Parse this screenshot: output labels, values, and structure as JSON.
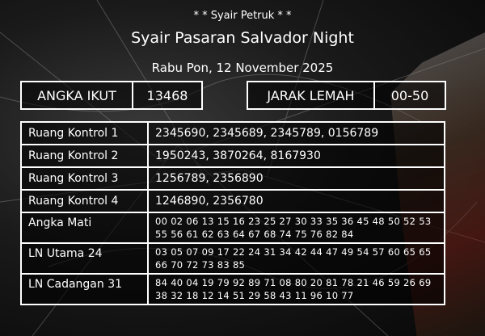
{
  "header": {
    "subtitle": "* * Syair Petruk * *",
    "title": "Syair Pasaran Salvador Night",
    "date": "Rabu Pon, 12 November 2025"
  },
  "angka_ikut": {
    "label": "ANGKA IKUT",
    "value": "13468"
  },
  "jarak_lemah": {
    "label": "JARAK LEMAH",
    "value": "00-50"
  },
  "rows": [
    {
      "label": "Ruang Kontrol 1",
      "value": "2345690, 2345689, 2345789, 0156789"
    },
    {
      "label": "Ruang Kontrol 2",
      "value": "1950243, 3870264, 8167930"
    },
    {
      "label": "Ruang Kontrol 3",
      "value": "1256789, 2356890"
    },
    {
      "label": "Ruang Kontrol 4",
      "value": "1246890, 2356780"
    },
    {
      "label": "Angka Mati",
      "value": "00 02 06 13 15 16 23 25 27 30 33 35 36 45 48 50 52 53 55 56 61 62 63 64 67 68 74 75 76 82 84"
    },
    {
      "label": "LN Utama 24",
      "value": "03 05 07 09 17 22 24 31 34 42 44 47 49 54 57 60 65 65 66 70 72 73 83 85"
    },
    {
      "label": "LN Cadangan 31",
      "value": "84 40 04 19 79 92 89 71 08 80 20 81 78 21 46 59 26 69 38 32 18 12 14 51 29 58 43 11 96 10 77"
    }
  ]
}
